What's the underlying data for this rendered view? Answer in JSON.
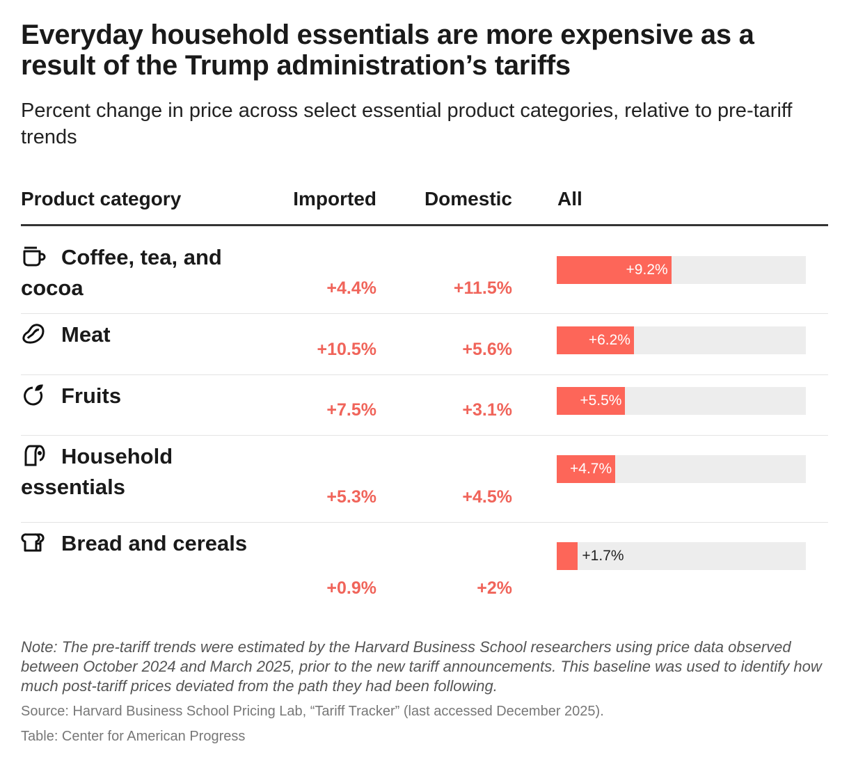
{
  "title": "Everyday household essentials are more expensive as a result of the Trump administration’s tariffs",
  "subtitle": "Percent change in price across select essential product categories, relative to pre-tariff trends",
  "headers": {
    "category": "Product category",
    "imported": "Imported",
    "domestic": "Domestic",
    "all": "All"
  },
  "colors": {
    "accent": "#f0645a",
    "bar": "#fd6659",
    "bar_bg": "#ededed"
  },
  "chart_data": {
    "type": "table",
    "columns": [
      "Product category",
      "Imported",
      "Domestic",
      "All"
    ],
    "bar_column": "All",
    "bar_range": [
      0,
      20
    ],
    "rows": [
      {
        "icon": "coffee-cup-icon",
        "category": "Coffee, tea, and cocoa",
        "imported": "+4.4%",
        "domestic": "+11.5%",
        "all": 9.2,
        "all_label": "+9.2%"
      },
      {
        "icon": "meat-steak-icon",
        "category": "Meat",
        "imported": "+10.5%",
        "domestic": "+5.6%",
        "all": 6.2,
        "all_label": "+6.2%"
      },
      {
        "icon": "fruit-icon",
        "category": "Fruits",
        "imported": "+7.5%",
        "domestic": "+3.1%",
        "all": 5.5,
        "all_label": "+5.5%"
      },
      {
        "icon": "toilet-paper-icon",
        "category": "Household essentials",
        "imported": "+5.3%",
        "domestic": "+4.5%",
        "all": 4.7,
        "all_label": "+4.7%"
      },
      {
        "icon": "bread-icon",
        "category": "Bread and cereals",
        "imported": "+0.9%",
        "domestic": "+2%",
        "all": 1.7,
        "all_label": "+1.7%"
      }
    ]
  },
  "note": "Note: The pre-tariff trends were estimated by the Harvard Business School researchers using price data observed between October 2024 and March 2025, prior to the new tariff announcements. This baseline was used to identify how much post-tariff prices deviated from the path they had been following.",
  "source": "Source: Harvard Business School Pricing Lab, “Tariff Tracker” (last accessed December 2025).",
  "credit": "Table: Center for American Progress"
}
